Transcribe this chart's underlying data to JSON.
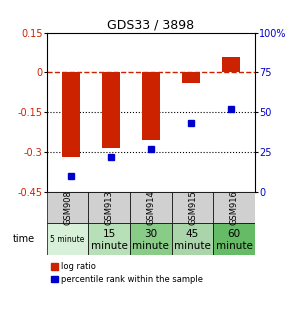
{
  "title": "GDS33 / 3898",
  "samples": [
    "GSM908",
    "GSM913",
    "GSM914",
    "GSM915",
    "GSM916"
  ],
  "time_labels_top": [
    "5 minute",
    "15",
    "30",
    "45",
    "60"
  ],
  "time_labels_bot": [
    "",
    "minute",
    "minute",
    "minute",
    "minute"
  ],
  "log_ratio": [
    -0.32,
    -0.285,
    -0.255,
    -0.04,
    0.06
  ],
  "percentile": [
    10,
    22,
    27,
    43,
    52
  ],
  "ylim_left": [
    -0.45,
    0.15
  ],
  "ylim_right": [
    0,
    100
  ],
  "yticks_left": [
    0.15,
    0.0,
    -0.15,
    -0.3,
    -0.45
  ],
  "yticks_right": [
    100,
    75,
    50,
    25,
    0
  ],
  "bar_color": "#cc2200",
  "dot_color": "#0000cc",
  "hline_color": "#cc2200",
  "dotline_color": "#000000",
  "bg_gray": "#d0d0d0",
  "time_colors": [
    "#d8f0d8",
    "#b8e0b8",
    "#88cc88",
    "#aad4aa",
    "#66bb66"
  ],
  "bar_width": 0.45,
  "legend_labels": [
    "log ratio",
    "percentile rank within the sample"
  ]
}
